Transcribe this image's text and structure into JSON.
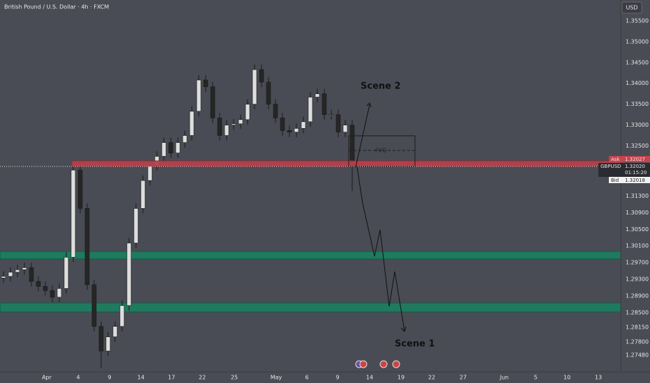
{
  "chart_data": {
    "type": "candlestick",
    "title": "British Pound / U.S. Dollar · 4h · FXCM",
    "currency": "USD",
    "up_color": "#dedede",
    "down_color": "#262626",
    "open": [
      1.2933,
      1.2937,
      1.2947,
      1.2953,
      1.2958,
      1.2925,
      1.2913,
      1.2903,
      1.2887,
      1.2908,
      1.2983,
      1.3192,
      1.31,
      1.2917,
      1.2817,
      1.2758,
      1.2792,
      1.2817,
      1.2867,
      1.3017,
      1.31,
      1.3167,
      1.3203,
      1.3225,
      1.3258,
      1.3233,
      1.3258,
      1.3275,
      1.3333,
      1.3408,
      1.3392,
      1.3317,
      1.3275,
      1.33,
      1.3303,
      1.3313,
      1.335,
      1.3433,
      1.3403,
      1.335,
      1.3317,
      1.3287,
      1.3283,
      1.3292,
      1.3308,
      1.3367,
      1.3375,
      1.3325,
      1.3325,
      1.3283,
      1.33
    ],
    "high": [
      1.2949,
      1.2959,
      1.2965,
      1.297,
      1.297,
      1.2937,
      1.2925,
      1.2915,
      1.292,
      1.2995,
      1.3203,
      1.3204,
      1.3112,
      1.2929,
      1.2829,
      1.2804,
      1.2829,
      1.2879,
      1.3029,
      1.3112,
      1.3179,
      1.3215,
      1.3237,
      1.327,
      1.327,
      1.327,
      1.3287,
      1.3345,
      1.342,
      1.342,
      1.3404,
      1.3329,
      1.3312,
      1.3315,
      1.3325,
      1.3362,
      1.3445,
      1.3445,
      1.3415,
      1.3362,
      1.3329,
      1.3299,
      1.3304,
      1.332,
      1.3379,
      1.3387,
      1.3387,
      1.3337,
      1.3337,
      1.3312,
      1.3312
    ],
    "low": [
      1.2921,
      1.2925,
      1.2935,
      1.2941,
      1.2913,
      1.2901,
      1.2891,
      1.2875,
      1.2875,
      1.2896,
      1.2971,
      1.3088,
      1.2905,
      1.2805,
      1.2717,
      1.2746,
      1.278,
      1.2805,
      1.2855,
      1.3005,
      1.3088,
      1.3155,
      1.3191,
      1.3213,
      1.3221,
      1.3221,
      1.3246,
      1.3263,
      1.3321,
      1.338,
      1.3305,
      1.3263,
      1.3263,
      1.3288,
      1.3291,
      1.3301,
      1.3338,
      1.3391,
      1.3338,
      1.3305,
      1.3275,
      1.3271,
      1.3271,
      1.328,
      1.3296,
      1.3355,
      1.3313,
      1.3313,
      1.3271,
      1.3271,
      1.3142
    ],
    "close": [
      1.2937,
      1.2947,
      1.2953,
      1.2958,
      1.2925,
      1.2913,
      1.2903,
      1.2887,
      1.2908,
      1.2983,
      1.3192,
      1.31,
      1.2917,
      1.2817,
      1.2758,
      1.2792,
      1.2817,
      1.2867,
      1.3017,
      1.31,
      1.3167,
      1.3203,
      1.3225,
      1.3258,
      1.3233,
      1.3258,
      1.3275,
      1.3333,
      1.3408,
      1.3392,
      1.3317,
      1.3275,
      1.33,
      1.3303,
      1.3313,
      1.335,
      1.3433,
      1.3403,
      1.335,
      1.3317,
      1.3287,
      1.3283,
      1.3292,
      1.3308,
      1.3367,
      1.3375,
      1.3325,
      1.3325,
      1.3283,
      1.33,
      1.3202
    ],
    "ylim": [
      1.2708,
      1.36
    ],
    "yticks": [
      {
        "value": 1.355,
        "label": "1.35500"
      },
      {
        "value": 1.35,
        "label": "1.35000"
      },
      {
        "value": 1.345,
        "label": "1.34500"
      },
      {
        "value": 1.34,
        "label": "1.34000"
      },
      {
        "value": 1.335,
        "label": "1.33500"
      },
      {
        "value": 1.33,
        "label": "1.33000"
      },
      {
        "value": 1.325,
        "label": "1.32500"
      },
      {
        "value": 1.313,
        "label": "1.31300"
      },
      {
        "value": 1.309,
        "label": "1.30900"
      },
      {
        "value": 1.305,
        "label": "1.30500"
      },
      {
        "value": 1.301,
        "label": "1.30100"
      },
      {
        "value": 1.297,
        "label": "1.29700"
      },
      {
        "value": 1.293,
        "label": "1.29300"
      },
      {
        "value": 1.289,
        "label": "1.28900"
      },
      {
        "value": 1.285,
        "label": "1.28500"
      },
      {
        "value": 1.2815,
        "label": "1.28150"
      },
      {
        "value": 1.278,
        "label": "1.27800"
      },
      {
        "value": 1.2748,
        "label": "1.27480"
      }
    ],
    "x_labels": [
      "Apr",
      "4",
      "9",
      "14",
      "17",
      "22",
      "25",
      "May",
      "6",
      "9",
      "14",
      "19",
      "22",
      "27",
      "Jun",
      "5",
      "10",
      "13"
    ],
    "annotations": {
      "scene2": "Scene 2",
      "scene1": "Scene 1",
      "fvg": "FVG"
    },
    "price_tags": {
      "ask_label": "Ask",
      "ask": "1.32027",
      "symbol": "GBPUSD",
      "last": "1.32020",
      "countdown": "01:15:20",
      "bid_label": "Bid",
      "bid": "1.32018"
    }
  }
}
